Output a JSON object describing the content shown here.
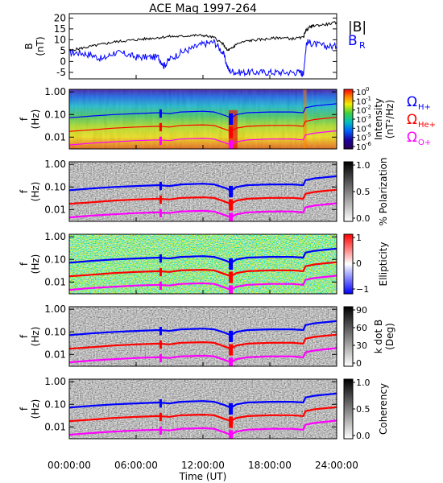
{
  "title": "ACE Mag 1997-264",
  "xlabel": "Time (UT)",
  "x_ticks": [
    "00:00:00",
    "06:00:00",
    "12:00:00",
    "18:00:00",
    "24:00:00"
  ],
  "f_ticks": [
    "1.00",
    "0.10",
    "0.01"
  ],
  "f_ylabel_top": "f",
  "f_ylabel_bottom": "(Hz)",
  "colors": {
    "B": "#000000",
    "BR": "#0000ff",
    "H": "#0000ff",
    "He": "#ff0000",
    "O": "#ff00ff"
  },
  "b_panel": {
    "ylabel_top": "B",
    "ylabel_bottom": "(nT)",
    "y_ticks": [
      "20",
      "15",
      "10",
      "5",
      "0",
      "-5"
    ],
    "legend": {
      "B": "|B|",
      "BR_main": "B",
      "BR_sub": "R"
    }
  },
  "panels": [
    {
      "kind": "intensity",
      "label": "Intensity",
      "label2": "(nT²/Hz)",
      "ticks": [
        "10",
        "10",
        "10",
        "10",
        "10",
        "10",
        "10"
      ],
      "tick_exp": [
        "0",
        "-1",
        "-2",
        "-3",
        "-4",
        "-5",
        "-6"
      ],
      "legend": {
        "H": "Ω",
        "H_sub": "H+",
        "He": "Ω",
        "He_sub": "He+",
        "O": "Ω",
        "O_sub": "O+"
      }
    },
    {
      "kind": "gray",
      "label": "% Polarization",
      "label2": "",
      "ticks": [
        "1.0",
        "0.5",
        "0.0"
      ]
    },
    {
      "kind": "ellipticity",
      "label": "Ellipticity",
      "label2": "",
      "ticks": [
        "1",
        "0",
        "−1"
      ]
    },
    {
      "kind": "gray",
      "label": "k dot B",
      "label2": "(Deg)",
      "ticks": [
        "90",
        "60",
        "30",
        "0"
      ]
    },
    {
      "kind": "gray",
      "label": "Coherency",
      "label2": "",
      "ticks": [
        "1.0",
        "0.5",
        "0.0"
      ]
    }
  ],
  "chart_data": {
    "type": "line",
    "title": "ACE Mag 1997-264",
    "xlabel": "Time (UT)",
    "x_unit": "hours",
    "xlim": [
      0,
      24
    ],
    "b_field": {
      "ylim": [
        -8,
        22
      ],
      "ylabel": "B (nT)",
      "series": [
        {
          "name": "|B|",
          "color": "#000000",
          "x": [
            0,
            1,
            2,
            3,
            4,
            5,
            6,
            7,
            8,
            9,
            10,
            11,
            12,
            13,
            13.8,
            14.2,
            14.6,
            15,
            16,
            17,
            18,
            19,
            20,
            21,
            21.2,
            21.6,
            22,
            23,
            24
          ],
          "y": [
            5,
            6,
            7,
            8,
            9,
            9.5,
            10,
            10.5,
            11,
            11.5,
            11.5,
            12,
            12,
            11,
            8,
            5,
            6,
            8,
            9.5,
            10,
            10.5,
            11,
            10.5,
            11,
            14,
            16,
            16.5,
            17,
            18
          ]
        },
        {
          "name": "B_R",
          "color": "#0000ff",
          "x": [
            0,
            1,
            2,
            3,
            4,
            5,
            6,
            7,
            8,
            8.5,
            9,
            10,
            11,
            12,
            13,
            13.8,
            14.3,
            15,
            16,
            17,
            18,
            19,
            20,
            20.8,
            21,
            21.3,
            22,
            23,
            24
          ],
          "y": [
            4,
            4,
            3,
            1,
            4,
            3.5,
            2,
            2,
            2,
            -2,
            1,
            4,
            6,
            8,
            9,
            4,
            -4,
            -5,
            -5,
            -5,
            -5,
            -5,
            -5,
            -5,
            -6,
            9,
            8,
            7,
            7
          ]
        }
      ]
    },
    "gyrofrequencies": {
      "ylim_hz": [
        0.003,
        1.3
      ],
      "yscale": "log",
      "series": [
        {
          "name": "Ω H+",
          "color": "#0000ff",
          "x": [
            0,
            2,
            4,
            6,
            8,
            9,
            10,
            12,
            13,
            14,
            14.5,
            15,
            16,
            18,
            20,
            21,
            21.2,
            22,
            23,
            24
          ],
          "y": [
            0.072,
            0.086,
            0.1,
            0.11,
            0.12,
            0.11,
            0.13,
            0.14,
            0.13,
            0.09,
            0.07,
            0.1,
            0.12,
            0.13,
            0.13,
            0.12,
            0.2,
            0.24,
            0.27,
            0.3
          ]
        },
        {
          "name": "Ω He+",
          "color": "#ff0000",
          "x": [
            0,
            2,
            4,
            6,
            8,
            9,
            10,
            12,
            13,
            14,
            14.5,
            15,
            16,
            18,
            20,
            21,
            21.2,
            22,
            23,
            24
          ],
          "y": [
            0.018,
            0.021,
            0.025,
            0.028,
            0.03,
            0.028,
            0.033,
            0.035,
            0.033,
            0.022,
            0.018,
            0.025,
            0.03,
            0.033,
            0.033,
            0.03,
            0.05,
            0.06,
            0.068,
            0.075
          ]
        },
        {
          "name": "Ω O+",
          "color": "#ff00ff",
          "x": [
            0,
            2,
            4,
            6,
            8,
            9,
            10,
            12,
            13,
            14,
            14.5,
            15,
            16,
            18,
            20,
            21,
            21.2,
            22,
            23,
            24
          ],
          "y": [
            0.0045,
            0.0054,
            0.0062,
            0.007,
            0.0075,
            0.007,
            0.0082,
            0.0088,
            0.0082,
            0.0056,
            0.0045,
            0.0062,
            0.0075,
            0.0082,
            0.0082,
            0.0075,
            0.0125,
            0.015,
            0.017,
            0.019
          ]
        }
      ]
    },
    "spectrogram_panels": [
      "Intensity",
      "% Polarization",
      "Ellipticity",
      "k dot B",
      "Coherency"
    ]
  }
}
